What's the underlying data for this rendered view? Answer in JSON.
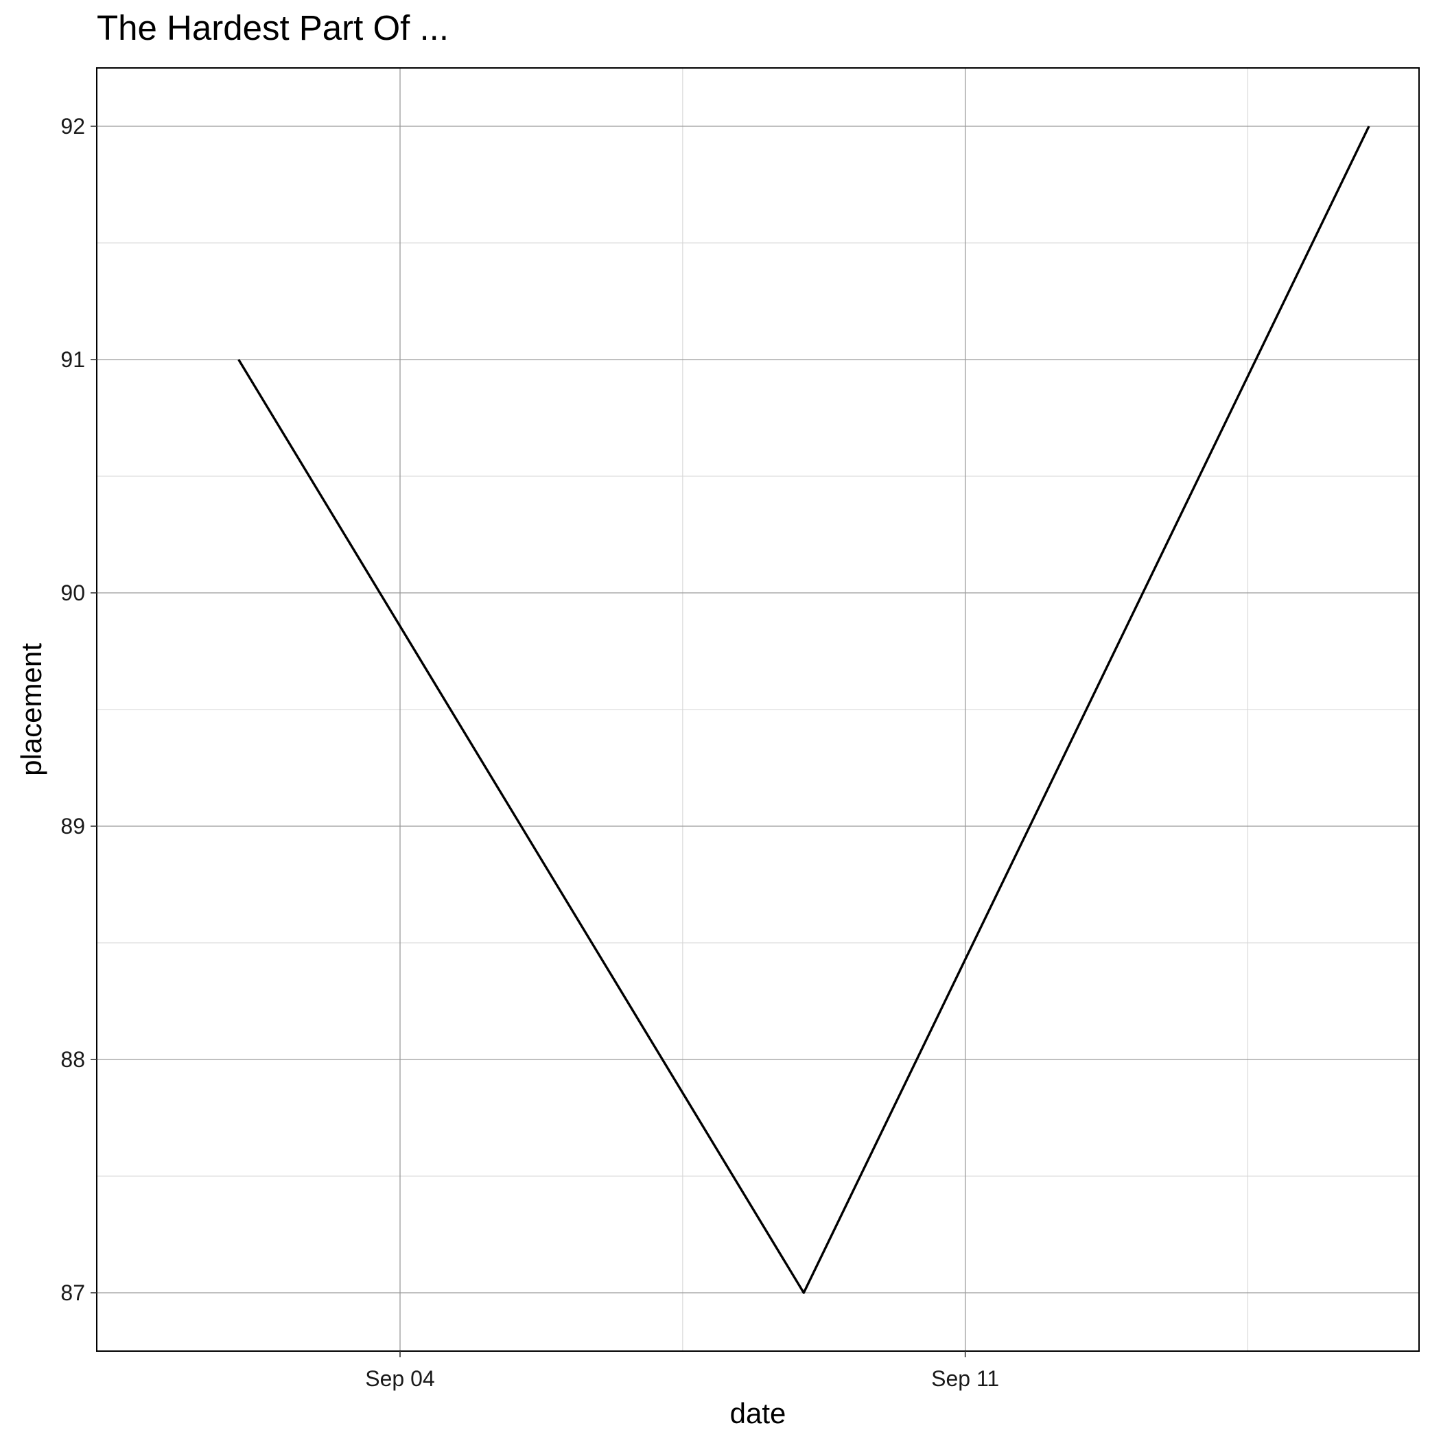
{
  "chart_data": {
    "type": "line",
    "title": "The Hardest Part Of ...",
    "xlabel": "date",
    "ylabel": "placement",
    "x_axis": {
      "scale": "date",
      "ticks": [
        {
          "value": "2020-09-04",
          "label": "Sep 04"
        },
        {
          "value": "2020-09-11",
          "label": "Sep 11"
        }
      ],
      "minor_ticks": [
        "2020-09-07T12:00",
        "2020-09-14T12:00"
      ],
      "range": [
        "2020-09-01",
        "2020-09-16"
      ]
    },
    "y_axis": {
      "ticks": [
        87,
        88,
        89,
        90,
        91,
        92
      ],
      "minor_ticks": [
        87.5,
        88.5,
        89.5,
        90.5,
        91.5
      ],
      "range": [
        86.75,
        92.25
      ]
    },
    "grid": true,
    "series": [
      {
        "color": "#000000",
        "points": [
          {
            "x": "2020-09-02",
            "y": 91
          },
          {
            "x": "2020-09-09",
            "y": 87
          },
          {
            "x": "2020-09-16",
            "y": 92
          }
        ]
      }
    ]
  }
}
